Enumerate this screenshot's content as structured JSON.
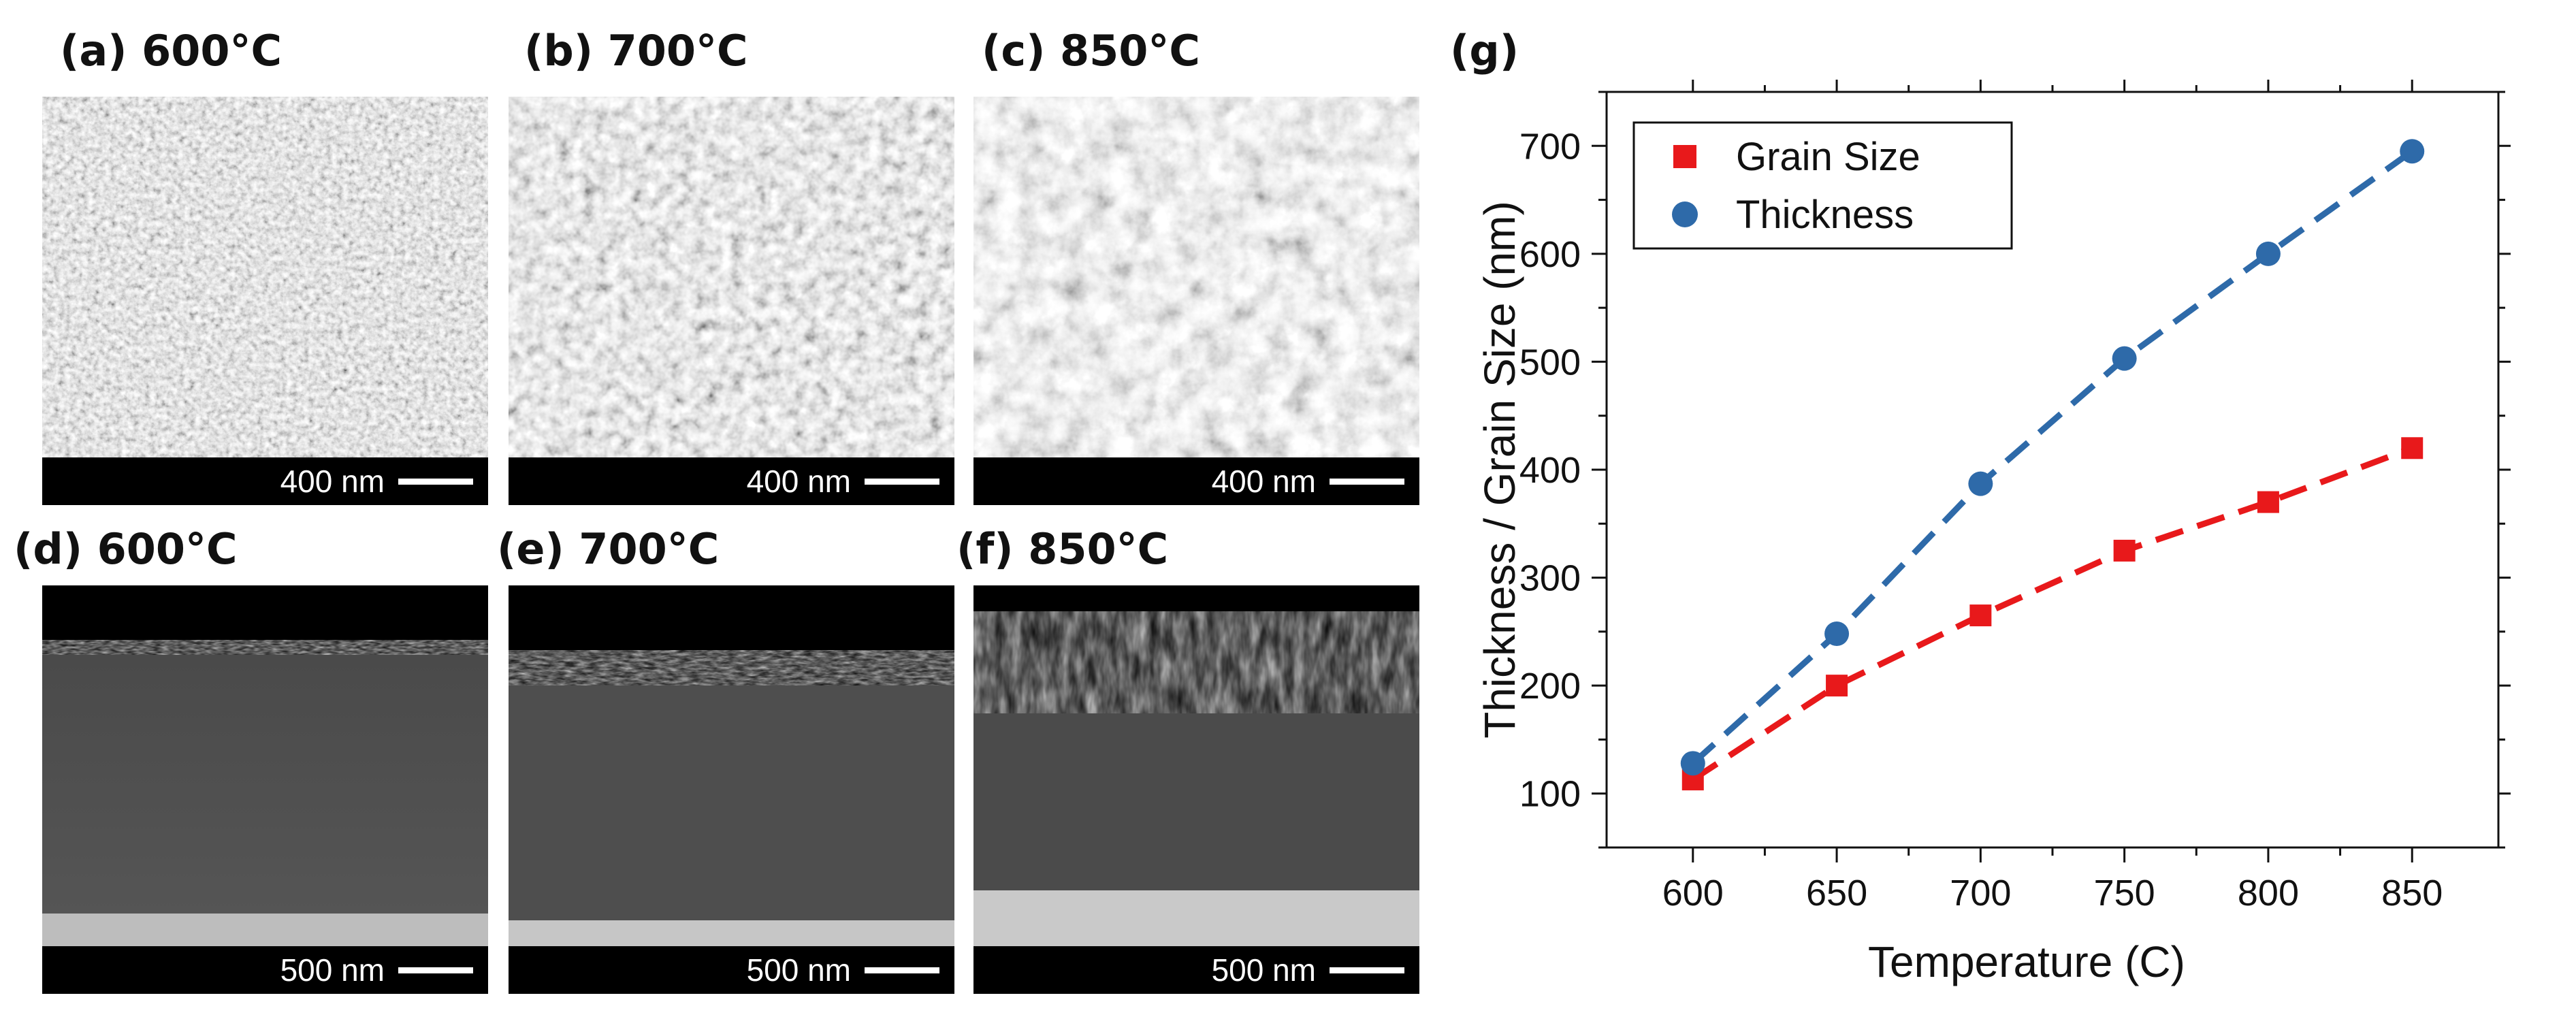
{
  "panels": {
    "a": {
      "label": "(a) 600°C",
      "scale": "400 nm"
    },
    "b": {
      "label": "(b) 700°C",
      "scale": "400 nm"
    },
    "c": {
      "label": "(c) 850°C",
      "scale": "400 nm"
    },
    "d": {
      "label": "(d) 600°C",
      "scale": "500 nm"
    },
    "e": {
      "label": "(e) 700°C",
      "scale": "500 nm"
    },
    "f": {
      "label": "(f) 850°C",
      "scale": "500 nm"
    },
    "g": {
      "label": "(g)"
    }
  },
  "chart_data": {
    "type": "scatter",
    "title": "",
    "xlabel": "Temperature (C)",
    "ylabel": "Thickness / Grain Size (nm)",
    "xlim": [
      570,
      880
    ],
    "ylim": [
      50,
      750
    ],
    "xticks": [
      600,
      650,
      700,
      750,
      800,
      850
    ],
    "yticks": [
      100,
      200,
      300,
      400,
      500,
      600,
      700
    ],
    "legend_position": "top-left",
    "series": [
      {
        "name": "Grain Size",
        "marker": "square",
        "color": "#e8191b",
        "x": [
          600,
          650,
          700,
          750,
          800,
          850
        ],
        "values": [
          113,
          200,
          265,
          325,
          370,
          420
        ]
      },
      {
        "name": "Thickness",
        "marker": "circle",
        "color": "#2e6aa9",
        "x": [
          600,
          650,
          700,
          750,
          800,
          850
        ],
        "values": [
          128,
          248,
          387,
          503,
          600,
          695
        ]
      }
    ]
  }
}
